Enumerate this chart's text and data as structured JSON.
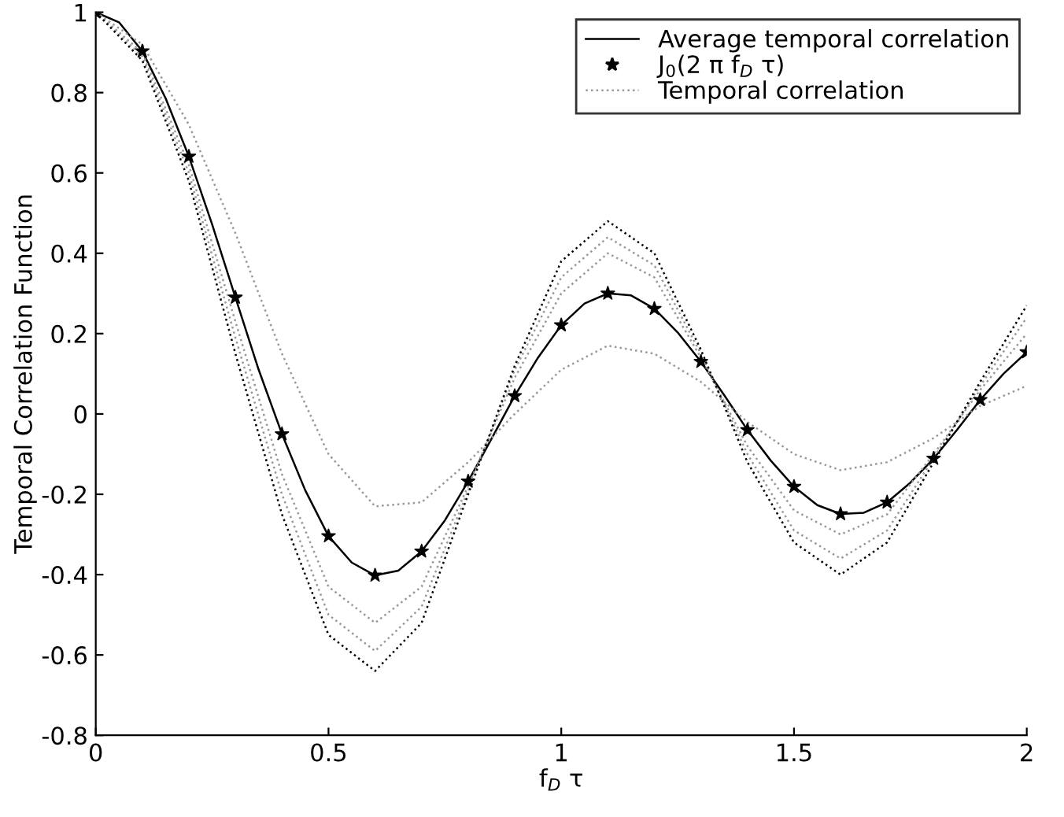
{
  "chart_data": {
    "type": "line",
    "xlabel": "f$_{D}$ τ",
    "ylabel": "Temporal Correlation Function",
    "xlim": [
      0,
      2
    ],
    "ylim": [
      -0.8,
      1
    ],
    "xticks": [
      0,
      0.5,
      1,
      1.5,
      2
    ],
    "yticks": [
      -0.8,
      -0.6,
      -0.4,
      -0.2,
      0,
      0.2,
      0.4,
      0.6,
      0.8,
      1
    ],
    "grid": false,
    "legend": "top right",
    "series": [
      {
        "name": "Average temporal correlation",
        "color": "#000000",
        "line_style": "solid",
        "marker": "none",
        "x": [
          0,
          0.05,
          0.1,
          0.15,
          0.2,
          0.25,
          0.3,
          0.35,
          0.4,
          0.45,
          0.5,
          0.55,
          0.6,
          0.65,
          0.7,
          0.75,
          0.8,
          0.85,
          0.9,
          0.95,
          1,
          1.05,
          1.1,
          1.15,
          1.2,
          1.25,
          1.3,
          1.35,
          1.4,
          1.45,
          1.5,
          1.55,
          1.6,
          1.65,
          1.7,
          1.75,
          1.8,
          1.85,
          1.9,
          1.95,
          2
        ],
        "values": [
          1,
          0.975,
          0.903,
          0.786,
          0.641,
          0.472,
          0.29,
          0.11,
          -0.05,
          -0.19,
          -0.304,
          -0.37,
          -0.402,
          -0.39,
          -0.342,
          -0.265,
          -0.168,
          -0.062,
          0.045,
          0.14,
          0.221,
          0.275,
          0.3,
          0.295,
          0.262,
          0.203,
          0.13,
          0.047,
          -0.04,
          -0.116,
          -0.181,
          -0.227,
          -0.249,
          -0.246,
          -0.22,
          -0.171,
          -0.111,
          -0.04,
          0.035,
          0.1,
          0.154
        ]
      },
      {
        "name": "J$_{0}$(2 π f$_{D}$ τ)",
        "type": "scatter",
        "color": "#000000",
        "marker": "star",
        "x": [
          0,
          0.1,
          0.2,
          0.3,
          0.4,
          0.5,
          0.6,
          0.7,
          0.8,
          0.9,
          1,
          1.1,
          1.2,
          1.3,
          1.4,
          1.5,
          1.6,
          1.7,
          1.8,
          1.9,
          2
        ],
        "values": [
          1,
          0.903,
          0.641,
          0.29,
          -0.05,
          -0.304,
          -0.402,
          -0.342,
          -0.168,
          0.045,
          0.221,
          0.3,
          0.262,
          0.13,
          -0.04,
          -0.181,
          -0.249,
          -0.22,
          -0.111,
          0.035,
          0.154
        ]
      },
      {
        "name": "Temporal correlation",
        "color": "#999999",
        "line_style": "dotted",
        "marker": "none",
        "x": [
          0,
          0.1,
          0.2,
          0.3,
          0.4,
          0.5,
          0.6,
          0.7,
          0.8,
          0.9,
          1,
          1.1,
          1.2,
          1.3,
          1.4,
          1.5,
          1.6,
          1.7,
          1.8,
          1.9,
          2
        ],
        "values": [
          1,
          0.92,
          0.72,
          0.45,
          0.15,
          -0.1,
          -0.23,
          -0.22,
          -0.12,
          0,
          0.11,
          0.17,
          0.15,
          0.08,
          -0.02,
          -0.1,
          -0.14,
          -0.12,
          -0.06,
          0.02,
          0.07
        ]
      },
      {
        "color": "#999999",
        "line_style": "dotted",
        "marker": "none",
        "x": [
          0,
          0.1,
          0.2,
          0.3,
          0.4,
          0.5,
          0.6,
          0.7,
          0.8,
          0.9,
          1,
          1.1,
          1.2,
          1.3,
          1.4,
          1.5,
          1.6,
          1.7,
          1.8,
          1.9,
          2
        ],
        "values": [
          1,
          0.9,
          0.62,
          0.23,
          -0.15,
          -0.43,
          -0.52,
          -0.43,
          -0.18,
          0.09,
          0.3,
          0.4,
          0.34,
          0.14,
          -0.08,
          -0.24,
          -0.3,
          -0.25,
          -0.1,
          0.06,
          0.2
        ]
      },
      {
        "color": "#999999",
        "line_style": "dotted",
        "marker": "none",
        "x": [
          0,
          0.1,
          0.2,
          0.3,
          0.4,
          0.5,
          0.6,
          0.7,
          0.8,
          0.9,
          1,
          1.1,
          1.2,
          1.3,
          1.4,
          1.5,
          1.6,
          1.7,
          1.8,
          1.9,
          2
        ],
        "values": [
          1,
          0.89,
          0.6,
          0.19,
          -0.2,
          -0.5,
          -0.59,
          -0.48,
          -0.19,
          0.11,
          0.34,
          0.44,
          0.37,
          0.15,
          -0.1,
          -0.29,
          -0.36,
          -0.29,
          -0.11,
          0.07,
          0.24
        ]
      },
      {
        "color": "#000000",
        "line_style": "dotted",
        "marker": "none",
        "x": [
          0,
          0.1,
          0.2,
          0.3,
          0.4,
          0.5,
          0.6,
          0.7,
          0.8,
          0.9,
          1,
          1.1,
          1.2,
          1.3,
          1.4,
          1.5,
          1.6,
          1.7,
          1.8,
          1.9,
          2
        ],
        "values": [
          1,
          0.88,
          0.58,
          0.15,
          -0.25,
          -0.55,
          -0.64,
          -0.52,
          -0.2,
          0.12,
          0.38,
          0.48,
          0.4,
          0.16,
          -0.12,
          -0.32,
          -0.4,
          -0.32,
          -0.12,
          0.08,
          0.27
        ]
      }
    ]
  }
}
